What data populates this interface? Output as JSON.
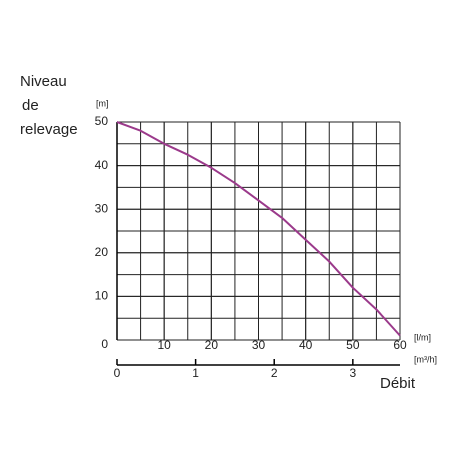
{
  "chart_data": {
    "type": "line",
    "y_label": [
      "Niveau",
      "de",
      "relevage"
    ],
    "y_unit": "[m]",
    "x_unit": "[l/m]",
    "x2_unit": "[m³/h]",
    "x_label": "Débit",
    "x": [
      0,
      5,
      10,
      15,
      20,
      25,
      30,
      35,
      40,
      45,
      50,
      55,
      60
    ],
    "series": [
      {
        "color": "#9b3a8b",
        "values": [
          50,
          48,
          45,
          42.5,
          39.5,
          36,
          32,
          28,
          23,
          18,
          12,
          7,
          1
        ]
      }
    ],
    "xlim": [
      0,
      60
    ],
    "xticks": [
      10,
      20,
      30,
      40,
      50,
      60
    ],
    "ylim": [
      0,
      50
    ],
    "yticks": [
      0,
      10,
      20,
      30,
      40,
      50
    ],
    "x2lim": [
      0,
      3.6
    ],
    "x2ticks": [
      0,
      1,
      2,
      3
    ],
    "grid": true
  }
}
